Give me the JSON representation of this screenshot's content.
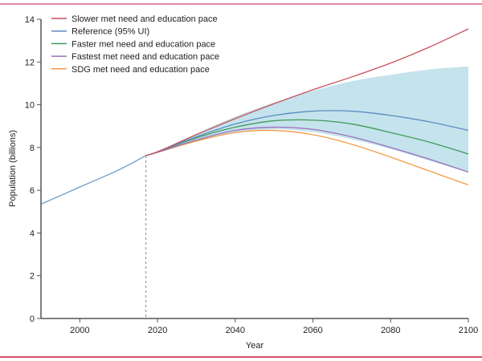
{
  "chart_data": {
    "type": "line",
    "title": "",
    "xlabel": "Year",
    "ylabel": "Population (billions)",
    "xlim": [
      1990,
      2100
    ],
    "ylim": [
      0,
      14
    ],
    "xticks": [
      2000,
      2020,
      2040,
      2060,
      2080,
      2100
    ],
    "yticks": [
      0,
      2,
      4,
      6,
      8,
      10,
      12,
      14
    ],
    "grid": false,
    "legend_position": "top-left",
    "forecast_start_marker": 2017,
    "historical": {
      "x": [
        1990,
        2000,
        2010,
        2017
      ],
      "values": [
        5.35,
        6.15,
        6.95,
        7.62
      ],
      "color": "#6a9bc8"
    },
    "x": [
      2017,
      2020,
      2030,
      2040,
      2050,
      2060,
      2070,
      2080,
      2090,
      2100
    ],
    "series": [
      {
        "name": "Slower met need and education pace",
        "color": "#c8505a",
        "values": [
          7.62,
          7.8,
          8.6,
          9.35,
          10.05,
          10.7,
          11.3,
          11.95,
          12.7,
          13.55
        ]
      },
      {
        "name": "Reference (95% UI)",
        "color": "#5b8cc2",
        "values": [
          7.62,
          7.8,
          8.5,
          9.1,
          9.5,
          9.7,
          9.7,
          9.5,
          9.2,
          8.8
        ],
        "ui_upper": [
          7.62,
          7.8,
          8.65,
          9.45,
          10.1,
          10.65,
          11.1,
          11.4,
          11.65,
          11.8
        ],
        "ui_lower": [
          7.62,
          7.77,
          8.28,
          8.72,
          8.85,
          8.72,
          8.38,
          7.93,
          7.38,
          6.83
        ],
        "band_color": "#c5e3ec"
      },
      {
        "name": "Faster met need and education pace",
        "color": "#3e9a5a",
        "values": [
          7.62,
          7.8,
          8.45,
          8.95,
          9.25,
          9.28,
          9.1,
          8.7,
          8.25,
          7.7
        ]
      },
      {
        "name": "Fastest met need and education pace",
        "color": "#9b6fbe",
        "values": [
          7.62,
          7.78,
          8.35,
          8.8,
          8.95,
          8.85,
          8.5,
          8.0,
          7.45,
          6.85
        ]
      },
      {
        "name": "SDG met need and education pace",
        "color": "#f59a45",
        "values": [
          7.62,
          7.77,
          8.3,
          8.7,
          8.8,
          8.6,
          8.15,
          7.55,
          6.9,
          6.25
        ]
      }
    ]
  }
}
